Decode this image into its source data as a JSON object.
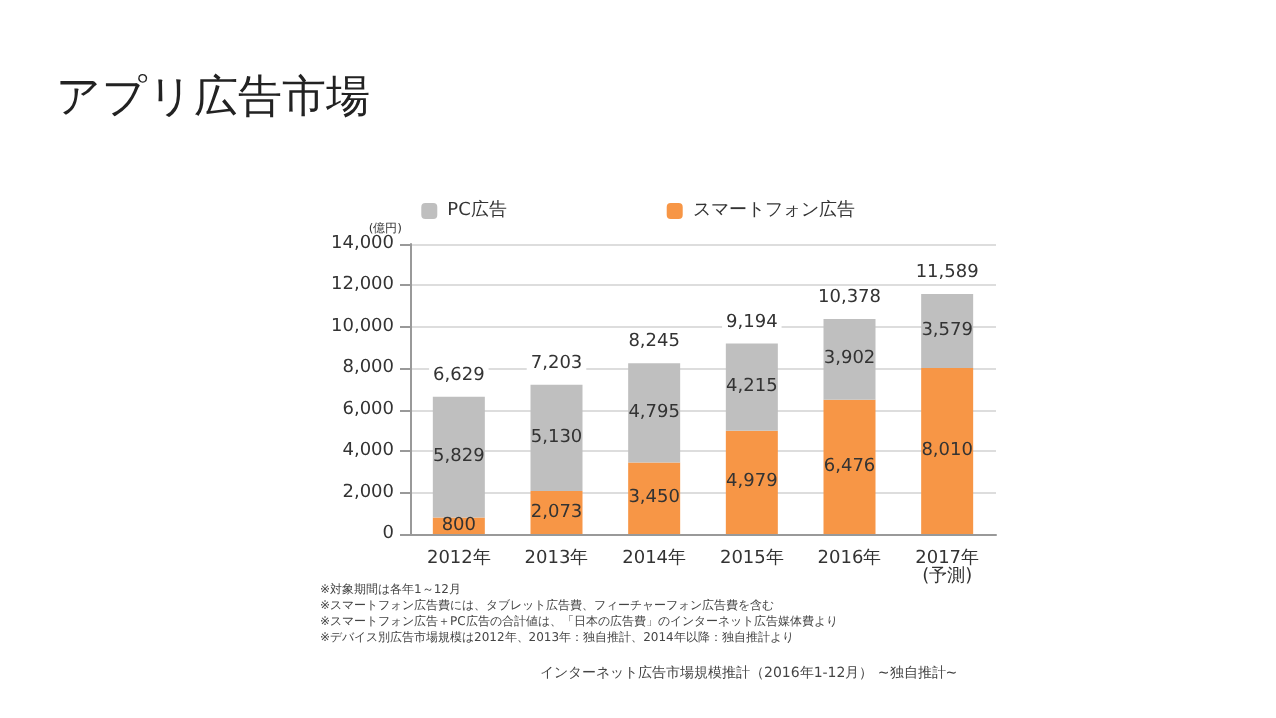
{
  "chart_data": {
    "type": "bar",
    "title": "アプリ広告市場",
    "ylabel": "(億円)",
    "categories": [
      "2012年",
      "2013年",
      "2014年",
      "2015年",
      "2016年",
      "2017年\n(予測)"
    ],
    "series": [
      {
        "name": "スマートフォン広告",
        "color": "#f79646",
        "values": [
          800,
          2073,
          3450,
          4979,
          6476,
          8010
        ],
        "value_labels": [
          "800",
          "2,073",
          "3,450",
          "4,979",
          "6,476",
          "8,010"
        ]
      },
      {
        "name": "PC広告",
        "color": "#bfbfbf",
        "values": [
          5829,
          5130,
          4795,
          4215,
          3902,
          3579
        ],
        "value_labels": [
          "5,829",
          "5,130",
          "4,795",
          "4,215",
          "3,902",
          "3,579"
        ]
      }
    ],
    "stacked": true,
    "totals": [
      "6,629",
      "7,203",
      "8,245",
      "9,194",
      "10,378",
      "11,589"
    ],
    "ylim": [
      0,
      14000
    ],
    "yticks": [
      0,
      {
        "value": 2000,
        "label": "2,000"
      },
      {
        "value": 4000,
        "label": "4,000"
      },
      {
        "value": 6000,
        "label": "6,000"
      },
      {
        "value": 8000,
        "label": "8,000"
      },
      {
        "value": 10000,
        "label": "10,000"
      },
      {
        "value": 12000,
        "label": "12,000"
      },
      {
        "value": 14000,
        "label": "14,000"
      }
    ],
    "grid": "y",
    "legend": "top",
    "annotations": [
      "※対象期間は各年1～12月",
      "※スマートフォン広告費には、タブレット広告費、フィーチャーフォン広告費を含む",
      "※スマートフォン広告＋PC広告の合計値は、「日本の広告費」のインターネット広告媒体費より",
      "※デバイス別広告市場規模は2012年、2013年：独自推計、2014年以降：独自推計より",
      "インターネット広告市場規模推計（2016年1-12月） ~独自推計~"
    ]
  }
}
